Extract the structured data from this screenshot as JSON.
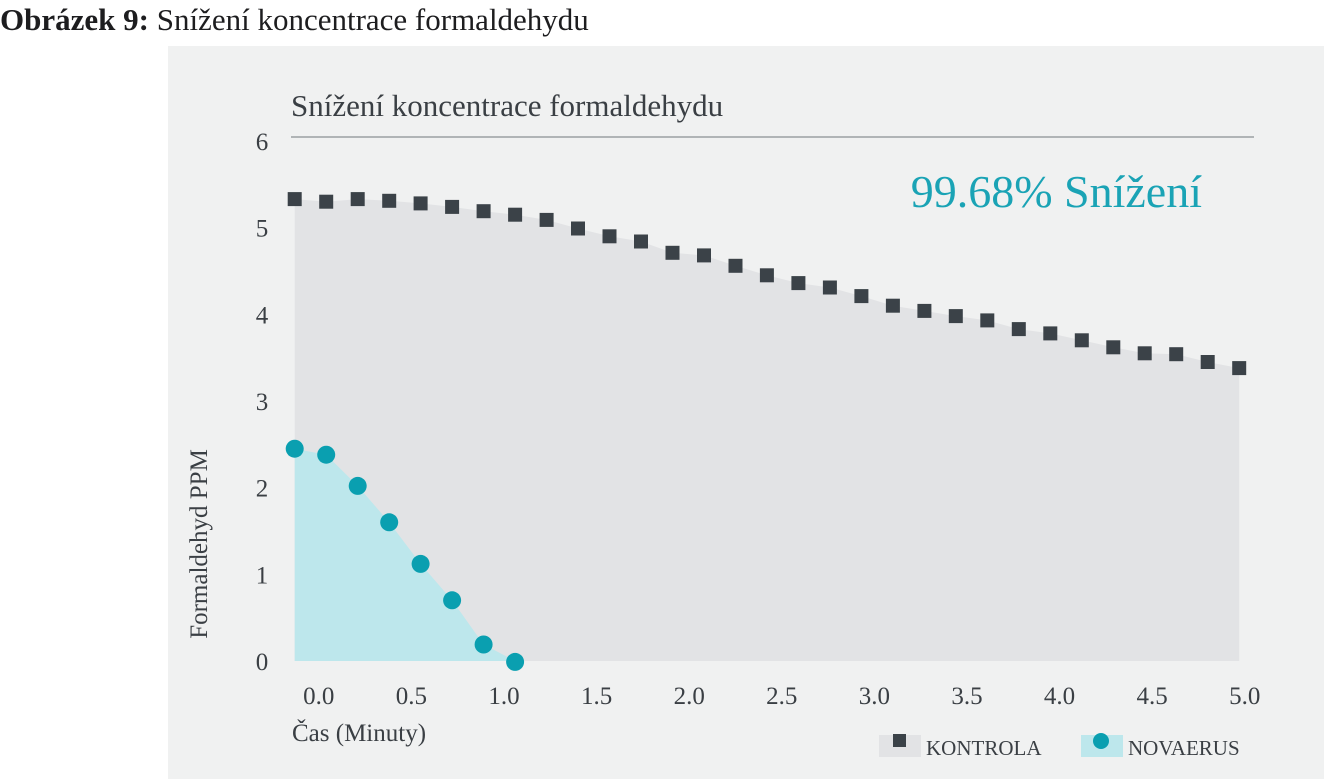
{
  "caption": {
    "lead": "Obrázek 9:",
    "text": "Snížení koncentrace formaldehydu"
  },
  "colors": {
    "panel_bg": "#f0f1f1",
    "kontrola_marker": "#3b4248",
    "kontrola_fill": "#e2e3e5",
    "novaerus_marker": "#0a9fb0",
    "novaerus_fill": "#bde7ec",
    "annotation": "#1aa3b5",
    "text": "#3a3f44",
    "rule": "#8a8f94"
  },
  "chart_data": {
    "type": "scatter",
    "title": "Snížení koncentrace formaldehydu",
    "xlabel": "Čas (Minuty)",
    "ylabel": "Formaldehyd PPM",
    "xlim": [
      -0.15,
      5.05
    ],
    "ylim": [
      0,
      6
    ],
    "x_ticks": [
      "0.0",
      "0.5",
      "1.0",
      "1.5",
      "2.0",
      "2.5",
      "3.0",
      "3.5",
      "4.0",
      "4.5",
      "5.0"
    ],
    "x_tick_values": [
      0,
      0.5,
      1,
      1.5,
      2,
      2.5,
      3,
      3.5,
      4,
      4.5,
      5
    ],
    "y_ticks": [
      "0",
      "1",
      "2",
      "3",
      "4",
      "5",
      "6"
    ],
    "y_tick_values": [
      0,
      1,
      2,
      3,
      4,
      5,
      6
    ],
    "annotation": "99.68% Snížení",
    "legend_position": "bottom-right",
    "grid": false,
    "series": [
      {
        "name": "KONTROLA",
        "marker": "square",
        "x": [
          -0.13,
          0.04,
          0.21,
          0.38,
          0.55,
          0.72,
          0.89,
          1.06,
          1.23,
          1.4,
          1.57,
          1.74,
          1.91,
          2.08,
          2.25,
          2.42,
          2.59,
          2.76,
          2.93,
          3.1,
          3.27,
          3.44,
          3.61,
          3.78,
          3.95,
          4.12,
          4.29,
          4.46,
          4.63,
          4.8,
          4.97
        ],
        "y": [
          5.33,
          5.3,
          5.33,
          5.31,
          5.28,
          5.24,
          5.19,
          5.15,
          5.09,
          4.99,
          4.9,
          4.84,
          4.71,
          4.68,
          4.56,
          4.45,
          4.36,
          4.31,
          4.21,
          4.1,
          4.04,
          3.98,
          3.93,
          3.83,
          3.78,
          3.7,
          3.62,
          3.55,
          3.54,
          3.45,
          3.38
        ]
      },
      {
        "name": "NOVAERUS",
        "marker": "circle",
        "x": [
          -0.13,
          0.04,
          0.21,
          0.38,
          0.55,
          0.72,
          0.89,
          1.06
        ],
        "y": [
          2.45,
          2.38,
          2.02,
          1.6,
          1.12,
          0.7,
          0.19,
          -0.01
        ]
      }
    ]
  }
}
